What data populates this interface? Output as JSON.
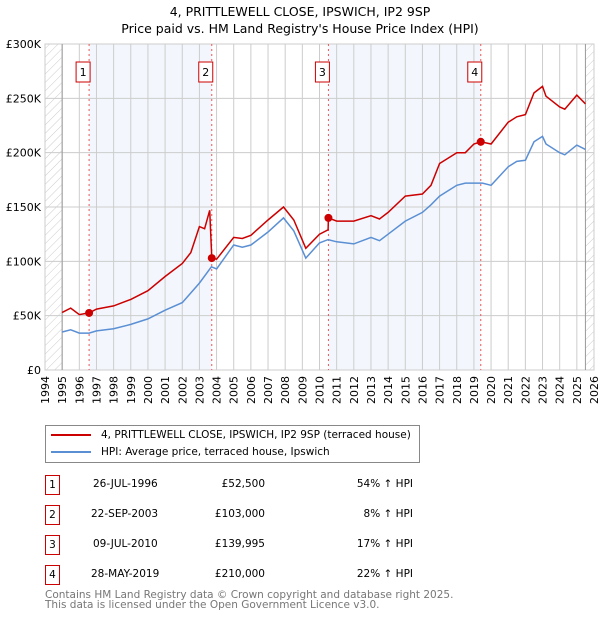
{
  "chart_data": {
    "type": "line",
    "title": [
      "4, PRITTLEWELL CLOSE, IPSWICH, IP2 9SP",
      "Price paid vs. HM Land Registry's House Price Index (HPI)"
    ],
    "xlim": [
      1994,
      2026
    ],
    "ylim": [
      0,
      300000
    ],
    "xticks": [
      "1994",
      "1995",
      "1996",
      "1997",
      "1998",
      "1999",
      "2000",
      "2001",
      "2002",
      "2003",
      "2004",
      "2005",
      "2006",
      "2007",
      "2008",
      "2009",
      "2010",
      "2011",
      "2012",
      "2013",
      "2014",
      "2015",
      "2016",
      "2017",
      "2018",
      "2019",
      "2020",
      "2021",
      "2022",
      "2023",
      "2024",
      "2025",
      "2026"
    ],
    "yticks": [
      {
        "v": 0,
        "label": "£0"
      },
      {
        "v": 50000,
        "label": "£50K"
      },
      {
        "v": 100000,
        "label": "£100K"
      },
      {
        "v": 150000,
        "label": "£150K"
      },
      {
        "v": 200000,
        "label": "£200K"
      },
      {
        "v": 250000,
        "label": "£250K"
      },
      {
        "v": 300000,
        "label": "£300K"
      }
    ],
    "data_range": [
      1995,
      2025.5
    ],
    "series": [
      {
        "name": "4, PRITTLEWELL CLOSE, IPSWICH, IP2 9SP (terraced house)",
        "color": "#cc0000",
        "x": [
          1995,
          1995.5,
          1996,
          1996.57,
          1997,
          1998,
          1999,
          2000,
          2001,
          2002,
          2002.5,
          2003,
          2003.3,
          2003.6,
          2003.72,
          2004,
          2005,
          2005.5,
          2006,
          2007,
          2007.9,
          2008.5,
          2009.2,
          2010,
          2010.5,
          2010.52,
          2011,
          2012,
          2013,
          2013.5,
          2014,
          2015,
          2016,
          2016.5,
          2017,
          2018,
          2018.5,
          2019,
          2019.4,
          2020,
          2021,
          2021.5,
          2022,
          2022.5,
          2023,
          2023.2,
          2024,
          2024.3,
          2025,
          2025.5
        ],
        "y": [
          53,
          57,
          51,
          52.5,
          56,
          59,
          65,
          73,
          86,
          98,
          108,
          132,
          130,
          147,
          103,
          102,
          122,
          121,
          124,
          138,
          150,
          138,
          112,
          125,
          129,
          140,
          137,
          137,
          142,
          139,
          145,
          160,
          162,
          170,
          190,
          200,
          200,
          208,
          210,
          208,
          228,
          233,
          235,
          255,
          261,
          252,
          242,
          240,
          253,
          245
        ]
      },
      {
        "name": "HPI: Average price, terraced house, Ipswich",
        "color": "#5b8fd4",
        "x": [
          1995,
          1995.5,
          1996,
          1996.57,
          1997,
          1998,
          1999,
          2000,
          2001,
          2002,
          2003,
          2003.7,
          2004,
          2005,
          2005.5,
          2006,
          2007,
          2007.9,
          2008.5,
          2009.2,
          2010,
          2010.5,
          2011,
          2012,
          2013,
          2013.5,
          2014,
          2015,
          2016,
          2016.5,
          2017,
          2018,
          2018.5,
          2019,
          2019.5,
          2020,
          2021,
          2021.5,
          2022,
          2022.5,
          2023,
          2023.2,
          2024,
          2024.3,
          2025,
          2025.5
        ],
        "y": [
          35,
          37,
          34,
          34,
          36,
          38,
          42,
          47,
          55,
          62,
          80,
          95,
          93,
          115,
          113,
          115,
          127,
          140,
          128,
          103,
          117,
          120,
          118,
          116,
          122,
          119,
          125,
          137,
          145,
          152,
          160,
          170,
          172,
          172,
          172,
          170,
          187,
          192,
          193,
          210,
          215,
          208,
          200,
          198,
          207,
          203
        ]
      }
    ],
    "y_units": 1000,
    "sales": [
      {
        "n": "1",
        "x": 1996.57,
        "y": 52500,
        "date": "26-JUL-1996",
        "price": "£52,500",
        "hpi": "54% ↑ HPI"
      },
      {
        "n": "2",
        "x": 2003.72,
        "y": 103000,
        "date": "22-SEP-2003",
        "price": "£103,000",
        "hpi": "8% ↑ HPI"
      },
      {
        "n": "3",
        "x": 2010.52,
        "y": 139995,
        "date": "09-JUL-2010",
        "price": "£139,995",
        "hpi": "17% ↑ HPI"
      },
      {
        "n": "4",
        "x": 2019.4,
        "y": 210000,
        "date": "28-MAY-2019",
        "price": "£210,000",
        "hpi": "22% ↑ HPI"
      }
    ]
  },
  "footer": [
    "Contains HM Land Registry data © Crown copyright and database right 2025.",
    "This data is licensed under the Open Government Licence v3.0."
  ]
}
